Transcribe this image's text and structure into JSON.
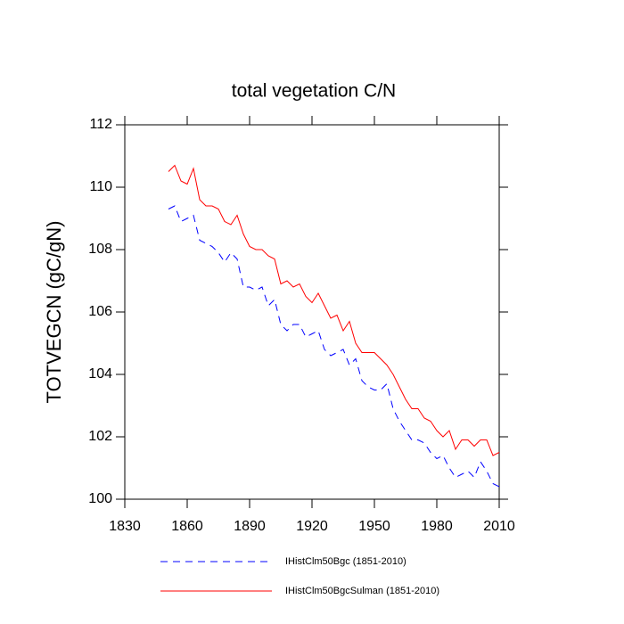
{
  "chart_data": {
    "type": "line",
    "title": "total vegetation C/N",
    "y_label": "TOTVEGCN  (gC/gN)",
    "x": [
      1851,
      1854,
      1857,
      1860,
      1863,
      1866,
      1869,
      1872,
      1875,
      1878,
      1881,
      1884,
      1887,
      1890,
      1893,
      1896,
      1899,
      1902,
      1905,
      1908,
      1911,
      1914,
      1917,
      1920,
      1923,
      1926,
      1929,
      1932,
      1935,
      1938,
      1941,
      1944,
      1947,
      1950,
      1953,
      1956,
      1959,
      1962,
      1965,
      1968,
      1971,
      1974,
      1977,
      1980,
      1983,
      1986,
      1989,
      1992,
      1995,
      1998,
      2001,
      2004,
      2007,
      2010
    ],
    "series": [
      {
        "name": "IHistClm50Bgc (1851-2010)",
        "color": "#0000ff",
        "dash": true,
        "values": [
          109.3,
          109.4,
          108.9,
          109.0,
          109.1,
          108.3,
          108.2,
          108.1,
          107.9,
          107.6,
          107.9,
          107.7,
          106.8,
          106.8,
          106.7,
          106.8,
          106.2,
          106.4,
          105.6,
          105.4,
          105.6,
          105.6,
          105.2,
          105.3,
          105.4,
          104.8,
          104.6,
          104.7,
          104.8,
          104.3,
          104.5,
          103.8,
          103.6,
          103.5,
          103.5,
          103.7,
          102.9,
          102.5,
          102.2,
          101.9,
          101.9,
          101.8,
          101.5,
          101.3,
          101.4,
          101.0,
          100.7,
          100.8,
          100.9,
          100.7,
          101.2,
          100.9,
          100.5,
          100.4
        ]
      },
      {
        "name": "IHistClm50BgcSulman (1851-2010)",
        "color": "#ff0000",
        "dash": false,
        "values": [
          110.5,
          110.7,
          110.2,
          110.1,
          110.6,
          109.6,
          109.4,
          109.4,
          109.3,
          108.9,
          108.8,
          109.1,
          108.5,
          108.1,
          108.0,
          108.0,
          107.8,
          107.7,
          106.9,
          107.0,
          106.8,
          106.9,
          106.5,
          106.3,
          106.6,
          106.2,
          105.8,
          105.9,
          105.4,
          105.7,
          105.0,
          104.7,
          104.7,
          104.7,
          104.5,
          104.3,
          104.0,
          103.6,
          103.2,
          102.9,
          102.9,
          102.6,
          102.5,
          102.2,
          102.0,
          102.2,
          101.6,
          101.9,
          101.9,
          101.7,
          101.9,
          101.9,
          101.4,
          101.5
        ]
      }
    ],
    "xlim": [
      1830,
      2010
    ],
    "xticks": [
      1830,
      1860,
      1890,
      1920,
      1950,
      1980,
      2010
    ],
    "ylim": [
      100,
      112
    ],
    "yticks": [
      100,
      102,
      104,
      106,
      108,
      110,
      112
    ],
    "grid": false
  }
}
